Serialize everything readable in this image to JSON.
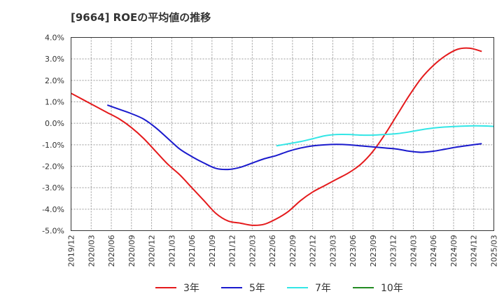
{
  "title": "[9664]  ROEの平均値の推移",
  "colors": {
    "3年": "#e41a1c",
    "5年": "#1a1acd",
    "7年": "#33e6e6",
    "10年": "#228b22"
  },
  "chart_data": {
    "type": "line",
    "title": "[9664]  ROEの平均値の推移",
    "xlabel": "",
    "ylabel": "",
    "ylim": [
      -5.0,
      4.0
    ],
    "yticks": [
      4.0,
      3.0,
      2.0,
      1.0,
      0.0,
      -1.0,
      -2.0,
      -3.0,
      -4.0,
      -5.0
    ],
    "ytick_labels": [
      "4.0%",
      "3.0%",
      "2.0%",
      "1.0%",
      "0.0%",
      "-1.0%",
      "-2.0%",
      "-3.0%",
      "-4.0%",
      "-5.0%"
    ],
    "x_tick_labels": [
      "2019/12",
      "2020/03",
      "2020/06",
      "2020/09",
      "2020/12",
      "2021/03",
      "2021/06",
      "2021/09",
      "2021/12",
      "2022/03",
      "2022/06",
      "2022/09",
      "2022/12",
      "2023/03",
      "2023/06",
      "2023/09",
      "2023/12",
      "2024/03",
      "2024/06",
      "2024/09",
      "2024/12",
      "2025/03"
    ],
    "grid": true,
    "legend_position": "bottom",
    "series": [
      {
        "name": "3年",
        "color": "#e41a1c",
        "points": [
          [
            0,
            1.4
          ],
          [
            1,
            1.1
          ],
          [
            2,
            0.8
          ],
          [
            3,
            0.5
          ],
          [
            4,
            0.2
          ],
          [
            5,
            -0.2
          ],
          [
            6,
            -0.7
          ],
          [
            7,
            -1.3
          ],
          [
            8,
            -1.9
          ],
          [
            9,
            -2.4
          ],
          [
            10,
            -3.0
          ],
          [
            11,
            -3.6
          ],
          [
            12,
            -4.2
          ],
          [
            13,
            -4.55
          ],
          [
            14,
            -4.65
          ],
          [
            15,
            -4.75
          ],
          [
            16,
            -4.7
          ],
          [
            17,
            -4.45
          ],
          [
            18,
            -4.1
          ],
          [
            19,
            -3.6
          ],
          [
            20,
            -3.2
          ],
          [
            21,
            -2.9
          ],
          [
            22,
            -2.6
          ],
          [
            23,
            -2.3
          ],
          [
            24,
            -1.9
          ],
          [
            25,
            -1.3
          ],
          [
            26,
            -0.5
          ],
          [
            27,
            0.4
          ],
          [
            28,
            1.3
          ],
          [
            29,
            2.1
          ],
          [
            30,
            2.7
          ],
          [
            31,
            3.15
          ],
          [
            32,
            3.45
          ],
          [
            33,
            3.5
          ],
          [
            34,
            3.35
          ]
        ]
      },
      {
        "name": "5年",
        "color": "#1a1acd",
        "points": [
          [
            3,
            0.85
          ],
          [
            4,
            0.65
          ],
          [
            5,
            0.45
          ],
          [
            6,
            0.2
          ],
          [
            7,
            -0.2
          ],
          [
            8,
            -0.7
          ],
          [
            9,
            -1.2
          ],
          [
            10,
            -1.55
          ],
          [
            11,
            -1.85
          ],
          [
            12,
            -2.1
          ],
          [
            13,
            -2.15
          ],
          [
            14,
            -2.05
          ],
          [
            15,
            -1.85
          ],
          [
            16,
            -1.65
          ],
          [
            17,
            -1.5
          ],
          [
            18,
            -1.3
          ],
          [
            19,
            -1.15
          ],
          [
            20,
            -1.05
          ],
          [
            21,
            -1.0
          ],
          [
            22,
            -0.98
          ],
          [
            23,
            -1.0
          ],
          [
            24,
            -1.05
          ],
          [
            25,
            -1.1
          ],
          [
            26,
            -1.15
          ],
          [
            27,
            -1.2
          ],
          [
            28,
            -1.3
          ],
          [
            29,
            -1.35
          ],
          [
            30,
            -1.3
          ],
          [
            31,
            -1.2
          ],
          [
            32,
            -1.1
          ],
          [
            33,
            -1.02
          ],
          [
            34,
            -0.95
          ]
        ]
      },
      {
        "name": "7年",
        "color": "#33e6e6",
        "points": [
          [
            17,
            -1.05
          ],
          [
            18,
            -0.95
          ],
          [
            19,
            -0.85
          ],
          [
            20,
            -0.72
          ],
          [
            21,
            -0.58
          ],
          [
            22,
            -0.52
          ],
          [
            23,
            -0.52
          ],
          [
            24,
            -0.55
          ],
          [
            25,
            -0.55
          ],
          [
            26,
            -0.52
          ],
          [
            27,
            -0.48
          ],
          [
            28,
            -0.4
          ],
          [
            29,
            -0.3
          ],
          [
            30,
            -0.22
          ],
          [
            31,
            -0.17
          ],
          [
            32,
            -0.14
          ],
          [
            33,
            -0.12
          ],
          [
            34,
            -0.12
          ],
          [
            35,
            -0.14
          ]
        ]
      },
      {
        "name": "10年",
        "color": "#228b22",
        "points": []
      }
    ]
  }
}
